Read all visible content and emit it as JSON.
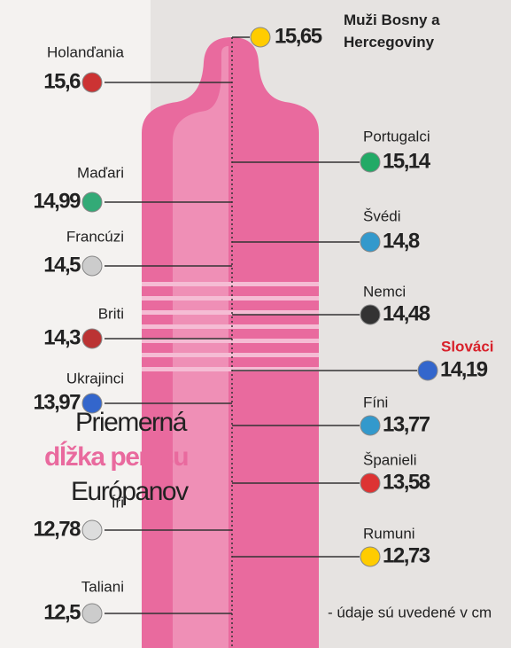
{
  "chart_data": {
    "type": "infographic",
    "title": [
      "Priemerná",
      "dĺžka penisu",
      "Európanov"
    ],
    "note": "- údaje sú uvedené v cm",
    "categories": [
      "Holanďania",
      "Maďari",
      "Francúzi",
      "Briti",
      "Ukrajinci",
      "Íri",
      "Taliani",
      "Muži Bosny a Hercegoviny",
      "Portugalci",
      "Švédi",
      "Nemci",
      "Slováci",
      "Fíni",
      "Španieli",
      "Rumuni"
    ],
    "values": [
      15.6,
      14.99,
      14.5,
      14.3,
      13.97,
      12.78,
      12.5,
      15.65,
      15.14,
      14.8,
      14.48,
      14.19,
      13.77,
      13.58,
      12.73
    ],
    "value_labels": [
      "15,6",
      "14,99",
      "14,5",
      "14,3",
      "13,97",
      "12,78",
      "12,5",
      "15,65",
      "15,14",
      "14,8",
      "14,48",
      "14,19",
      "13,77",
      "13,58",
      "12,73"
    ],
    "color": "#e96a9e",
    "highlight": "Slováci",
    "highlight_color": "#d8202a"
  }
}
